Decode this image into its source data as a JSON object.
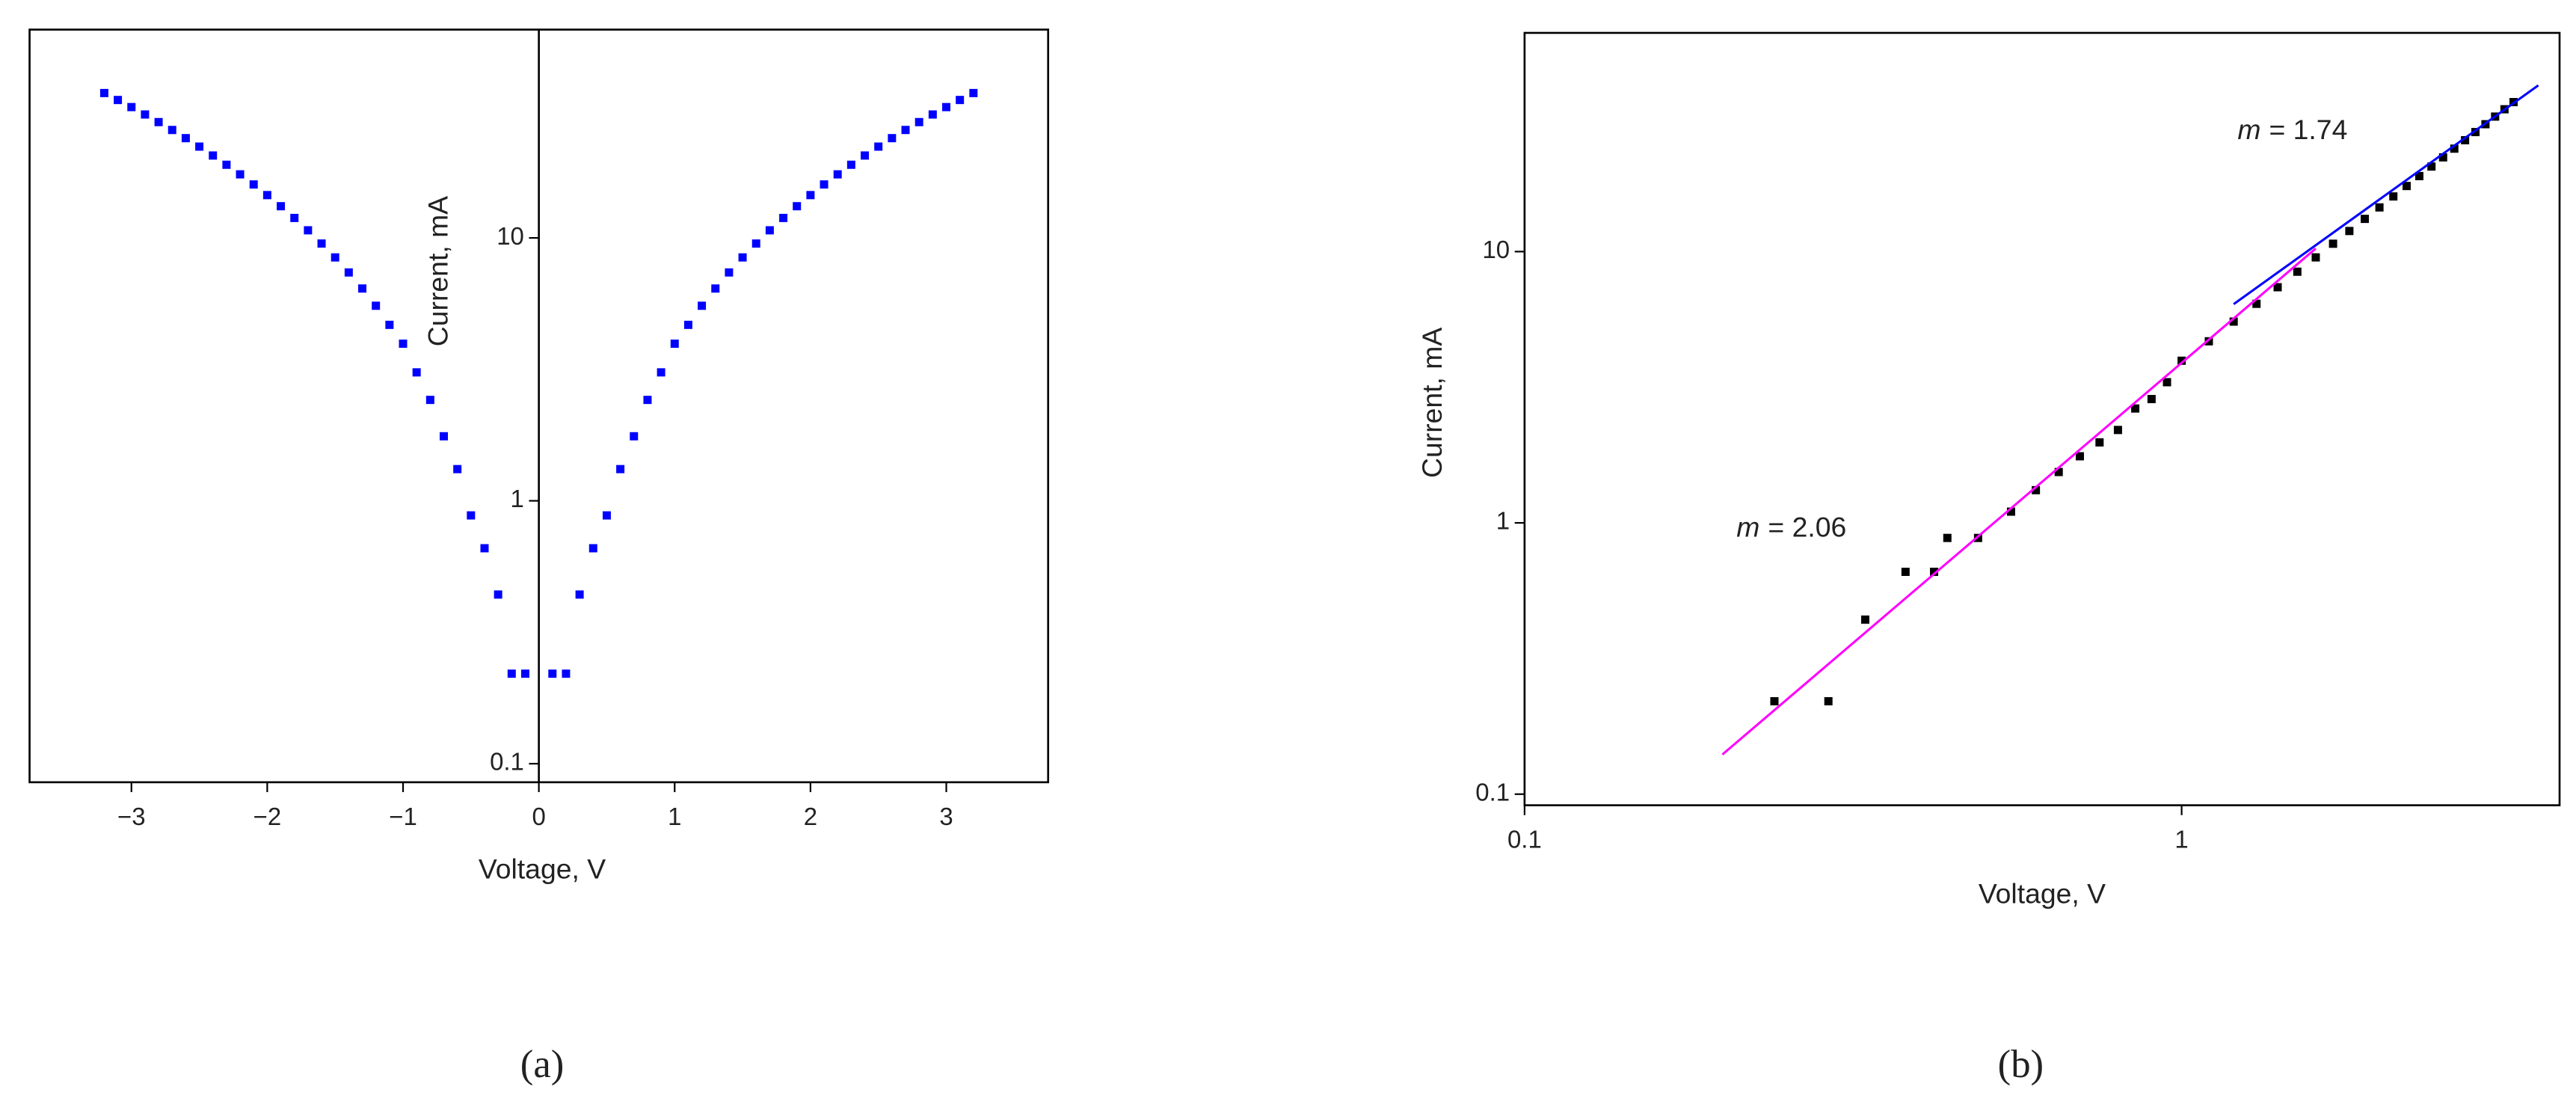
{
  "chart_data": [
    {
      "type": "scatter",
      "panel_label": "(a)",
      "xlabel": "Voltage, V",
      "ylabel": "Current, mA",
      "yscale": "log",
      "yaxis_position": "zero",
      "x": [
        -3.2,
        -3.1,
        -3.0,
        -2.9,
        -2.8,
        -2.7,
        -2.6,
        -2.5,
        -2.4,
        -2.3,
        -2.2,
        -2.1,
        -2.0,
        -1.9,
        -1.8,
        -1.7,
        -1.6,
        -1.5,
        -1.4,
        -1.3,
        -1.2,
        -1.1,
        -1.0,
        -0.9,
        -0.8,
        -0.7,
        -0.6,
        -0.5,
        -0.4,
        -0.3,
        -0.2,
        -0.1,
        0.1,
        0.2,
        0.3,
        0.4,
        0.5,
        0.6,
        0.7,
        0.8,
        0.9,
        1.0,
        1.1,
        1.2,
        1.3,
        1.4,
        1.5,
        1.6,
        1.7,
        1.8,
        1.9,
        2.0,
        2.1,
        2.2,
        2.3,
        2.4,
        2.5,
        2.6,
        2.7,
        2.8,
        2.9,
        3.0,
        3.1,
        3.2
      ],
      "series": [
        {
          "color": "#0000ff",
          "values": [
            35.57,
            33.47,
            31.45,
            29.48,
            27.58,
            25.74,
            23.96,
            22.25,
            20.58,
            18.98,
            17.45,
            15.97,
            14.55,
            13.2,
            11.91,
            10.69,
            9.52,
            8.43,
            7.39,
            6.42,
            5.52,
            4.67,
            3.96,
            3.08,
            2.42,
            1.76,
            1.32,
            0.88,
            0.66,
            0.44,
            0.22,
            0.22,
            0.22,
            0.22,
            0.44,
            0.66,
            0.88,
            1.32,
            1.76,
            2.42,
            3.08,
            3.96,
            4.67,
            5.52,
            6.42,
            7.39,
            8.43,
            9.52,
            10.69,
            11.91,
            13.2,
            14.55,
            15.97,
            17.45,
            18.98,
            20.58,
            22.25,
            23.96,
            25.74,
            27.58,
            29.48,
            31.45,
            33.47,
            35.57
          ]
        }
      ],
      "xlim": [
        -3.75,
        3.75
      ],
      "ylim": [
        0.085,
        62
      ],
      "xticks": [
        {
          "value": -3,
          "label": "−3"
        },
        {
          "value": -2,
          "label": "−2"
        },
        {
          "value": -1,
          "label": "−1"
        },
        0,
        1,
        2,
        3
      ],
      "yticks": [
        0.1,
        1,
        10
      ]
    },
    {
      "type": "scatter",
      "panel_label": "(b)",
      "xlabel": "Voltage, V",
      "ylabel": "Current, mA",
      "xscale": "log",
      "yscale": "log",
      "x": [
        0.24,
        0.29,
        0.33,
        0.38,
        0.42,
        0.44,
        0.49,
        0.55,
        0.6,
        0.65,
        0.7,
        0.75,
        0.8,
        0.85,
        0.9,
        0.95,
        1.0,
        1.1,
        1.2,
        1.3,
        1.4,
        1.5,
        1.6,
        1.7,
        1.8,
        1.9,
        2.0,
        2.1,
        2.2,
        2.3,
        2.4,
        2.5,
        2.6,
        2.7,
        2.8,
        2.9,
        3.0,
        3.1,
        3.2
      ],
      "series": [
        {
          "color": "#000000",
          "values": [
            0.22,
            0.22,
            0.44,
            0.66,
            0.66,
            0.88,
            0.88,
            1.1,
            1.32,
            1.54,
            1.76,
            1.98,
            2.2,
            2.64,
            2.86,
            3.3,
            3.96,
            4.67,
            5.52,
            6.42,
            7.39,
            8.43,
            9.52,
            10.69,
            11.91,
            13.2,
            14.55,
            15.97,
            17.45,
            18.98,
            20.58,
            22.25,
            23.96,
            25.74,
            27.58,
            29.48,
            31.45,
            33.47,
            35.57
          ]
        }
      ],
      "fits": [
        {
          "symbol": "m",
          "label": "= 2.06",
          "color": "#ff00ff",
          "x": [
            0.2,
            1.6
          ],
          "values": [
            0.14,
            10.27
          ]
        },
        {
          "symbol": "m",
          "label": "= 1.74",
          "color": "#0000ff",
          "x": [
            1.2,
            3.49
          ],
          "values": [
            6.4,
            41
          ]
        }
      ],
      "xlim": [
        0.1,
        3.76
      ],
      "ylim": [
        0.091,
        64
      ],
      "xticks": [
        0.1,
        1
      ],
      "yticks": [
        0.1,
        1,
        10
      ]
    }
  ]
}
